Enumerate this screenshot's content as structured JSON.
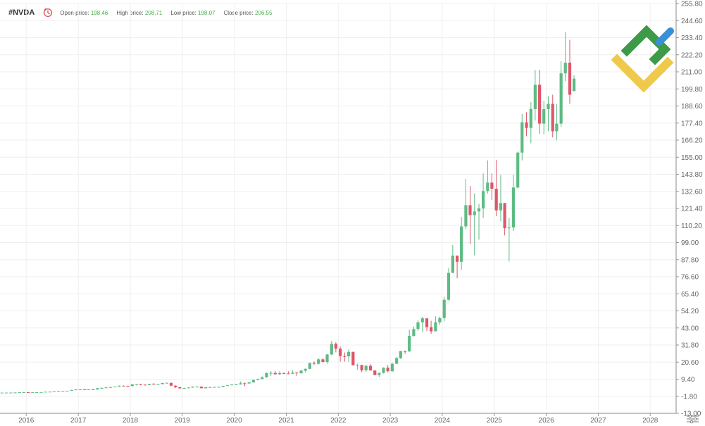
{
  "header": {
    "ticker": "#NVDA",
    "open_label": "Open price:",
    "open_value": "198.46",
    "high_label": "High price:",
    "high_value": "208.71",
    "low_label": "Low price:",
    "low_value": "198.07",
    "close_label": "Close price:",
    "close_value": "206.55"
  },
  "colors": {
    "up": "#5dbb83",
    "down": "#e0566a",
    "grid": "#efefef",
    "axis_text": "#666666",
    "logo_green": "#3d9a48",
    "logo_yellow": "#efc94c",
    "logo_blue": "#3b8fd4",
    "clock": "#e04b5a"
  },
  "icons": {
    "clock": "clock-icon",
    "logo": "brand-logo-icon",
    "settings": "settings-icon"
  },
  "chart_data": {
    "type": "candlestick",
    "title": "",
    "xlabel": "",
    "ylabel": "",
    "y_ticks": [
      "255.80",
      "244.60",
      "233.40",
      "222.20",
      "211.00",
      "199.80",
      "188.60",
      "177.40",
      "166.20",
      "155.00",
      "143.80",
      "132.60",
      "121.40",
      "110.20",
      "99.00",
      "87.80",
      "76.60",
      "65.40",
      "54.20",
      "43.00",
      "31.80",
      "20.60",
      "9.40",
      "-1.80",
      "-13.00"
    ],
    "ylim": [
      -13.0,
      255.8
    ],
    "x_ticks": [
      "2016",
      "2017",
      "2018",
      "2019",
      "2020",
      "2021",
      "2022",
      "2023",
      "2024",
      "2025",
      "2026",
      "2027",
      "2028"
    ],
    "x_range": [
      "2015-07-01",
      "2028-07-01"
    ],
    "grid": true,
    "candles": [
      {
        "date": "2015-07",
        "open": 0.55,
        "high": 0.6,
        "low": 0.5,
        "close": 0.58
      },
      {
        "date": "2015-08",
        "open": 0.58,
        "high": 0.62,
        "low": 0.52,
        "close": 0.6
      },
      {
        "date": "2015-09",
        "open": 0.6,
        "high": 0.65,
        "low": 0.55,
        "close": 0.62
      },
      {
        "date": "2015-10",
        "open": 0.62,
        "high": 0.7,
        "low": 0.6,
        "close": 0.68
      },
      {
        "date": "2015-11",
        "open": 0.68,
        "high": 0.85,
        "low": 0.65,
        "close": 0.82
      },
      {
        "date": "2015-12",
        "open": 0.82,
        "high": 0.88,
        "low": 0.78,
        "close": 0.85
      },
      {
        "date": "2016-01",
        "open": 0.85,
        "high": 0.9,
        "low": 0.7,
        "close": 0.75
      },
      {
        "date": "2016-02",
        "open": 0.75,
        "high": 0.82,
        "low": 0.68,
        "close": 0.8
      },
      {
        "date": "2016-03",
        "open": 0.8,
        "high": 0.9,
        "low": 0.78,
        "close": 0.88
      },
      {
        "date": "2016-04",
        "open": 0.88,
        "high": 0.95,
        "low": 0.85,
        "close": 0.92
      },
      {
        "date": "2016-05",
        "open": 0.92,
        "high": 1.2,
        "low": 0.9,
        "close": 1.15
      },
      {
        "date": "2016-06",
        "open": 1.15,
        "high": 1.25,
        "low": 1.1,
        "close": 1.2
      },
      {
        "date": "2016-07",
        "open": 1.2,
        "high": 1.45,
        "low": 1.18,
        "close": 1.42
      },
      {
        "date": "2016-08",
        "open": 1.42,
        "high": 1.65,
        "low": 1.4,
        "close": 1.6
      },
      {
        "date": "2016-09",
        "open": 1.6,
        "high": 1.75,
        "low": 1.55,
        "close": 1.7
      },
      {
        "date": "2016-10",
        "open": 1.7,
        "high": 1.85,
        "low": 1.65,
        "close": 1.8
      },
      {
        "date": "2016-11",
        "open": 1.8,
        "high": 2.4,
        "low": 1.75,
        "close": 2.3
      },
      {
        "date": "2016-12",
        "open": 2.3,
        "high": 2.8,
        "low": 2.25,
        "close": 2.65
      },
      {
        "date": "2017-01",
        "open": 2.65,
        "high": 3.0,
        "low": 2.5,
        "close": 2.75
      },
      {
        "date": "2017-02",
        "open": 2.75,
        "high": 2.85,
        "low": 2.4,
        "close": 2.5
      },
      {
        "date": "2017-03",
        "open": 2.5,
        "high": 2.8,
        "low": 2.3,
        "close": 2.7
      },
      {
        "date": "2017-04",
        "open": 2.7,
        "high": 2.8,
        "low": 2.4,
        "close": 2.6
      },
      {
        "date": "2017-05",
        "open": 2.6,
        "high": 3.6,
        "low": 2.55,
        "close": 3.5
      },
      {
        "date": "2017-06",
        "open": 3.5,
        "high": 4.0,
        "low": 3.3,
        "close": 3.6
      },
      {
        "date": "2017-07",
        "open": 3.6,
        "high": 4.1,
        "low": 3.5,
        "close": 4.0
      },
      {
        "date": "2017-08",
        "open": 4.0,
        "high": 4.3,
        "low": 3.8,
        "close": 4.2
      },
      {
        "date": "2017-09",
        "open": 4.2,
        "high": 4.6,
        "low": 4.1,
        "close": 4.5
      },
      {
        "date": "2017-10",
        "open": 4.5,
        "high": 5.2,
        "low": 4.4,
        "close": 5.1
      },
      {
        "date": "2017-11",
        "open": 5.1,
        "high": 5.3,
        "low": 4.8,
        "close": 5.0
      },
      {
        "date": "2017-12",
        "open": 5.0,
        "high": 5.1,
        "low": 4.7,
        "close": 4.85
      },
      {
        "date": "2018-01",
        "open": 4.85,
        "high": 6.2,
        "low": 4.8,
        "close": 6.0
      },
      {
        "date": "2018-02",
        "open": 6.0,
        "high": 6.3,
        "low": 5.2,
        "close": 6.1
      },
      {
        "date": "2018-03",
        "open": 6.1,
        "high": 6.4,
        "low": 5.4,
        "close": 5.8
      },
      {
        "date": "2018-04",
        "open": 5.8,
        "high": 6.0,
        "low": 5.3,
        "close": 5.6
      },
      {
        "date": "2018-05",
        "open": 5.6,
        "high": 6.4,
        "low": 5.5,
        "close": 6.3
      },
      {
        "date": "2018-06",
        "open": 6.3,
        "high": 6.8,
        "low": 5.8,
        "close": 5.95
      },
      {
        "date": "2018-07",
        "open": 5.95,
        "high": 6.4,
        "low": 5.8,
        "close": 6.1
      },
      {
        "date": "2018-08",
        "open": 6.1,
        "high": 7.0,
        "low": 6.0,
        "close": 6.9
      },
      {
        "date": "2018-09",
        "open": 6.9,
        "high": 7.2,
        "low": 6.7,
        "close": 7.0
      },
      {
        "date": "2018-10",
        "open": 7.0,
        "high": 7.1,
        "low": 4.8,
        "close": 5.1
      },
      {
        "date": "2018-11",
        "open": 5.1,
        "high": 5.4,
        "low": 3.6,
        "close": 4.1
      },
      {
        "date": "2018-12",
        "open": 4.1,
        "high": 4.3,
        "low": 3.2,
        "close": 3.35
      },
      {
        "date": "2019-01",
        "open": 3.35,
        "high": 3.9,
        "low": 3.2,
        "close": 3.6
      },
      {
        "date": "2019-02",
        "open": 3.6,
        "high": 4.2,
        "low": 3.5,
        "close": 3.9
      },
      {
        "date": "2019-03",
        "open": 3.9,
        "high": 4.6,
        "low": 3.8,
        "close": 4.5
      },
      {
        "date": "2019-04",
        "open": 4.5,
        "high": 4.8,
        "low": 4.3,
        "close": 4.52
      },
      {
        "date": "2019-05",
        "open": 4.52,
        "high": 4.6,
        "low": 3.4,
        "close": 3.45
      },
      {
        "date": "2019-06",
        "open": 3.45,
        "high": 4.2,
        "low": 3.3,
        "close": 4.1
      },
      {
        "date": "2019-07",
        "open": 4.1,
        "high": 4.5,
        "low": 4.0,
        "close": 4.2
      },
      {
        "date": "2019-08",
        "open": 4.2,
        "high": 4.4,
        "low": 3.9,
        "close": 4.3
      },
      {
        "date": "2019-09",
        "open": 4.3,
        "high": 4.6,
        "low": 4.1,
        "close": 4.35
      },
      {
        "date": "2019-10",
        "open": 4.35,
        "high": 5.1,
        "low": 4.2,
        "close": 5.0
      },
      {
        "date": "2019-11",
        "open": 5.0,
        "high": 5.5,
        "low": 4.9,
        "close": 5.4
      },
      {
        "date": "2019-12",
        "open": 5.4,
        "high": 6.0,
        "low": 5.3,
        "close": 5.9
      },
      {
        "date": "2020-01",
        "open": 5.9,
        "high": 6.3,
        "low": 5.8,
        "close": 5.95
      },
      {
        "date": "2020-02",
        "open": 5.95,
        "high": 7.9,
        "low": 5.9,
        "close": 6.7
      },
      {
        "date": "2020-03",
        "open": 6.7,
        "high": 7.2,
        "low": 4.9,
        "close": 6.6
      },
      {
        "date": "2020-04",
        "open": 6.6,
        "high": 7.5,
        "low": 6.2,
        "close": 7.3
      },
      {
        "date": "2020-05",
        "open": 7.3,
        "high": 9.2,
        "low": 7.1,
        "close": 8.9
      },
      {
        "date": "2020-06",
        "open": 8.9,
        "high": 9.8,
        "low": 8.6,
        "close": 9.5
      },
      {
        "date": "2020-07",
        "open": 9.5,
        "high": 11.2,
        "low": 9.3,
        "close": 10.6
      },
      {
        "date": "2020-08",
        "open": 10.6,
        "high": 13.8,
        "low": 10.4,
        "close": 13.4
      },
      {
        "date": "2020-09",
        "open": 13.4,
        "high": 14.8,
        "low": 11.5,
        "close": 13.5
      },
      {
        "date": "2020-10",
        "open": 13.5,
        "high": 14.7,
        "low": 12.4,
        "close": 12.6
      },
      {
        "date": "2020-11",
        "open": 12.6,
        "high": 14.6,
        "low": 12.2,
        "close": 13.4
      },
      {
        "date": "2020-12",
        "open": 13.4,
        "high": 13.8,
        "low": 12.6,
        "close": 13.1
      },
      {
        "date": "2021-01",
        "open": 13.1,
        "high": 14.6,
        "low": 12.8,
        "close": 13.0
      },
      {
        "date": "2021-02",
        "open": 13.0,
        "high": 15.3,
        "low": 12.8,
        "close": 13.7
      },
      {
        "date": "2021-03",
        "open": 13.7,
        "high": 14.0,
        "low": 11.6,
        "close": 13.3
      },
      {
        "date": "2021-04",
        "open": 13.3,
        "high": 15.6,
        "low": 13.0,
        "close": 15.0
      },
      {
        "date": "2021-05",
        "open": 15.0,
        "high": 16.4,
        "low": 13.9,
        "close": 16.2
      },
      {
        "date": "2021-06",
        "open": 16.2,
        "high": 20.2,
        "low": 16.0,
        "close": 20.0
      },
      {
        "date": "2021-07",
        "open": 20.0,
        "high": 21.1,
        "low": 18.7,
        "close": 19.5
      },
      {
        "date": "2021-08",
        "open": 19.5,
        "high": 23.0,
        "low": 19.0,
        "close": 22.4
      },
      {
        "date": "2021-09",
        "open": 22.4,
        "high": 23.2,
        "low": 20.5,
        "close": 20.7
      },
      {
        "date": "2021-10",
        "open": 20.7,
        "high": 26.0,
        "low": 19.5,
        "close": 25.6
      },
      {
        "date": "2021-11",
        "open": 25.6,
        "high": 34.6,
        "low": 25.2,
        "close": 32.6
      },
      {
        "date": "2021-12",
        "open": 32.6,
        "high": 33.6,
        "low": 27.0,
        "close": 29.4
      },
      {
        "date": "2022-01",
        "open": 29.4,
        "high": 30.8,
        "low": 20.9,
        "close": 24.5
      },
      {
        "date": "2022-02",
        "open": 24.5,
        "high": 26.9,
        "low": 20.9,
        "close": 24.4
      },
      {
        "date": "2022-03",
        "open": 24.4,
        "high": 28.9,
        "low": 20.9,
        "close": 27.3
      },
      {
        "date": "2022-04",
        "open": 27.3,
        "high": 27.5,
        "low": 18.5,
        "close": 18.5
      },
      {
        "date": "2022-05",
        "open": 18.5,
        "high": 19.6,
        "low": 15.6,
        "close": 18.7
      },
      {
        "date": "2022-06",
        "open": 18.7,
        "high": 18.9,
        "low": 14.0,
        "close": 15.2
      },
      {
        "date": "2022-07",
        "open": 15.2,
        "high": 18.7,
        "low": 14.1,
        "close": 18.2
      },
      {
        "date": "2022-08",
        "open": 18.2,
        "high": 19.2,
        "low": 15.0,
        "close": 15.1
      },
      {
        "date": "2022-09",
        "open": 15.1,
        "high": 15.3,
        "low": 12.0,
        "close": 12.1
      },
      {
        "date": "2022-10",
        "open": 12.1,
        "high": 13.8,
        "low": 10.8,
        "close": 13.5
      },
      {
        "date": "2022-11",
        "open": 13.5,
        "high": 17.2,
        "low": 13.2,
        "close": 16.9
      },
      {
        "date": "2022-12",
        "open": 16.9,
        "high": 18.7,
        "low": 13.9,
        "close": 14.6
      },
      {
        "date": "2023-01",
        "open": 14.6,
        "high": 20.2,
        "low": 14.1,
        "close": 19.5
      },
      {
        "date": "2023-02",
        "open": 19.5,
        "high": 24.0,
        "low": 19.3,
        "close": 23.2
      },
      {
        "date": "2023-03",
        "open": 23.2,
        "high": 28.0,
        "low": 22.6,
        "close": 27.8
      },
      {
        "date": "2023-04",
        "open": 27.8,
        "high": 28.2,
        "low": 26.0,
        "close": 27.7
      },
      {
        "date": "2023-05",
        "open": 27.7,
        "high": 41.9,
        "low": 27.2,
        "close": 37.8
      },
      {
        "date": "2023-06",
        "open": 37.8,
        "high": 43.9,
        "low": 37.3,
        "close": 42.3
      },
      {
        "date": "2023-07",
        "open": 42.3,
        "high": 48.1,
        "low": 41.0,
        "close": 46.7
      },
      {
        "date": "2023-08",
        "open": 46.7,
        "high": 50.3,
        "low": 40.3,
        "close": 49.3
      },
      {
        "date": "2023-09",
        "open": 49.3,
        "high": 49.4,
        "low": 40.9,
        "close": 43.5
      },
      {
        "date": "2023-10",
        "open": 43.5,
        "high": 47.7,
        "low": 39.2,
        "close": 40.8
      },
      {
        "date": "2023-11",
        "open": 40.8,
        "high": 50.6,
        "low": 40.8,
        "close": 46.7
      },
      {
        "date": "2023-12",
        "open": 46.7,
        "high": 50.4,
        "low": 45.0,
        "close": 49.5
      },
      {
        "date": "2024-01",
        "open": 49.5,
        "high": 63.5,
        "low": 47.3,
        "close": 61.5
      },
      {
        "date": "2024-02",
        "open": 61.5,
        "high": 82.3,
        "low": 60.9,
        "close": 79.1
      },
      {
        "date": "2024-03",
        "open": 79.1,
        "high": 97.4,
        "low": 79.1,
        "close": 90.4
      },
      {
        "date": "2024-04",
        "open": 90.4,
        "high": 90.6,
        "low": 75.6,
        "close": 86.4
      },
      {
        "date": "2024-05",
        "open": 86.4,
        "high": 115.8,
        "low": 81.1,
        "close": 109.6
      },
      {
        "date": "2024-06",
        "open": 109.6,
        "high": 140.8,
        "low": 108.0,
        "close": 123.5
      },
      {
        "date": "2024-07",
        "open": 123.5,
        "high": 136.2,
        "low": 97.9,
        "close": 117.0
      },
      {
        "date": "2024-08",
        "open": 117.0,
        "high": 131.3,
        "low": 90.7,
        "close": 119.4
      },
      {
        "date": "2024-09",
        "open": 119.4,
        "high": 124.4,
        "low": 100.9,
        "close": 121.4
      },
      {
        "date": "2024-10",
        "open": 121.4,
        "high": 144.4,
        "low": 115.1,
        "close": 132.8
      },
      {
        "date": "2024-11",
        "open": 132.8,
        "high": 152.9,
        "low": 131.2,
        "close": 138.3
      },
      {
        "date": "2024-12",
        "open": 138.3,
        "high": 144.4,
        "low": 126.9,
        "close": 134.3
      },
      {
        "date": "2025-01",
        "open": 134.3,
        "high": 153.1,
        "low": 116.3,
        "close": 120.1
      },
      {
        "date": "2025-02",
        "open": 120.1,
        "high": 143.4,
        "low": 113.0,
        "close": 124.9
      },
      {
        "date": "2025-03",
        "open": 124.9,
        "high": 125.1,
        "low": 103.7,
        "close": 108.4
      },
      {
        "date": "2025-04",
        "open": 108.4,
        "high": 115.1,
        "low": 86.6,
        "close": 108.9
      },
      {
        "date": "2025-05",
        "open": 108.9,
        "high": 143.5,
        "low": 106.6,
        "close": 135.1
      },
      {
        "date": "2025-06",
        "open": 135.1,
        "high": 158.7,
        "low": 134.5,
        "close": 158.0
      },
      {
        "date": "2025-07",
        "open": 158.0,
        "high": 183.3,
        "low": 152.9,
        "close": 177.9
      },
      {
        "date": "2025-08",
        "open": 177.9,
        "high": 184.5,
        "low": 168.8,
        "close": 174.2
      },
      {
        "date": "2025-09",
        "open": 174.2,
        "high": 191.1,
        "low": 164.1,
        "close": 186.6
      },
      {
        "date": "2025-10",
        "open": 186.6,
        "high": 212.2,
        "low": 179.0,
        "close": 202.5
      },
      {
        "date": "2025-11",
        "open": 202.5,
        "high": 212.2,
        "low": 170.3,
        "close": 177.0
      },
      {
        "date": "2025-12",
        "open": 177.0,
        "high": 192.0,
        "low": 170.0,
        "close": 186.5
      },
      {
        "date": "2026-01",
        "open": 186.5,
        "high": 195.0,
        "low": 172.0,
        "close": 190.0
      },
      {
        "date": "2026-02",
        "open": 190.0,
        "high": 196.0,
        "low": 168.0,
        "close": 172.0
      },
      {
        "date": "2026-03",
        "open": 172.0,
        "high": 190.0,
        "low": 166.0,
        "close": 177.0
      },
      {
        "date": "2026-04",
        "open": 177.0,
        "high": 218.0,
        "low": 175.0,
        "close": 210.0
      },
      {
        "date": "2026-05",
        "open": 210.0,
        "high": 237.0,
        "low": 205.0,
        "close": 217.0
      },
      {
        "date": "2026-06",
        "open": 217.0,
        "high": 232.0,
        "low": 190.0,
        "close": 196.0
      },
      {
        "date": "2026-07",
        "open": 198.46,
        "high": 208.71,
        "low": 198.07,
        "close": 206.55
      }
    ]
  }
}
